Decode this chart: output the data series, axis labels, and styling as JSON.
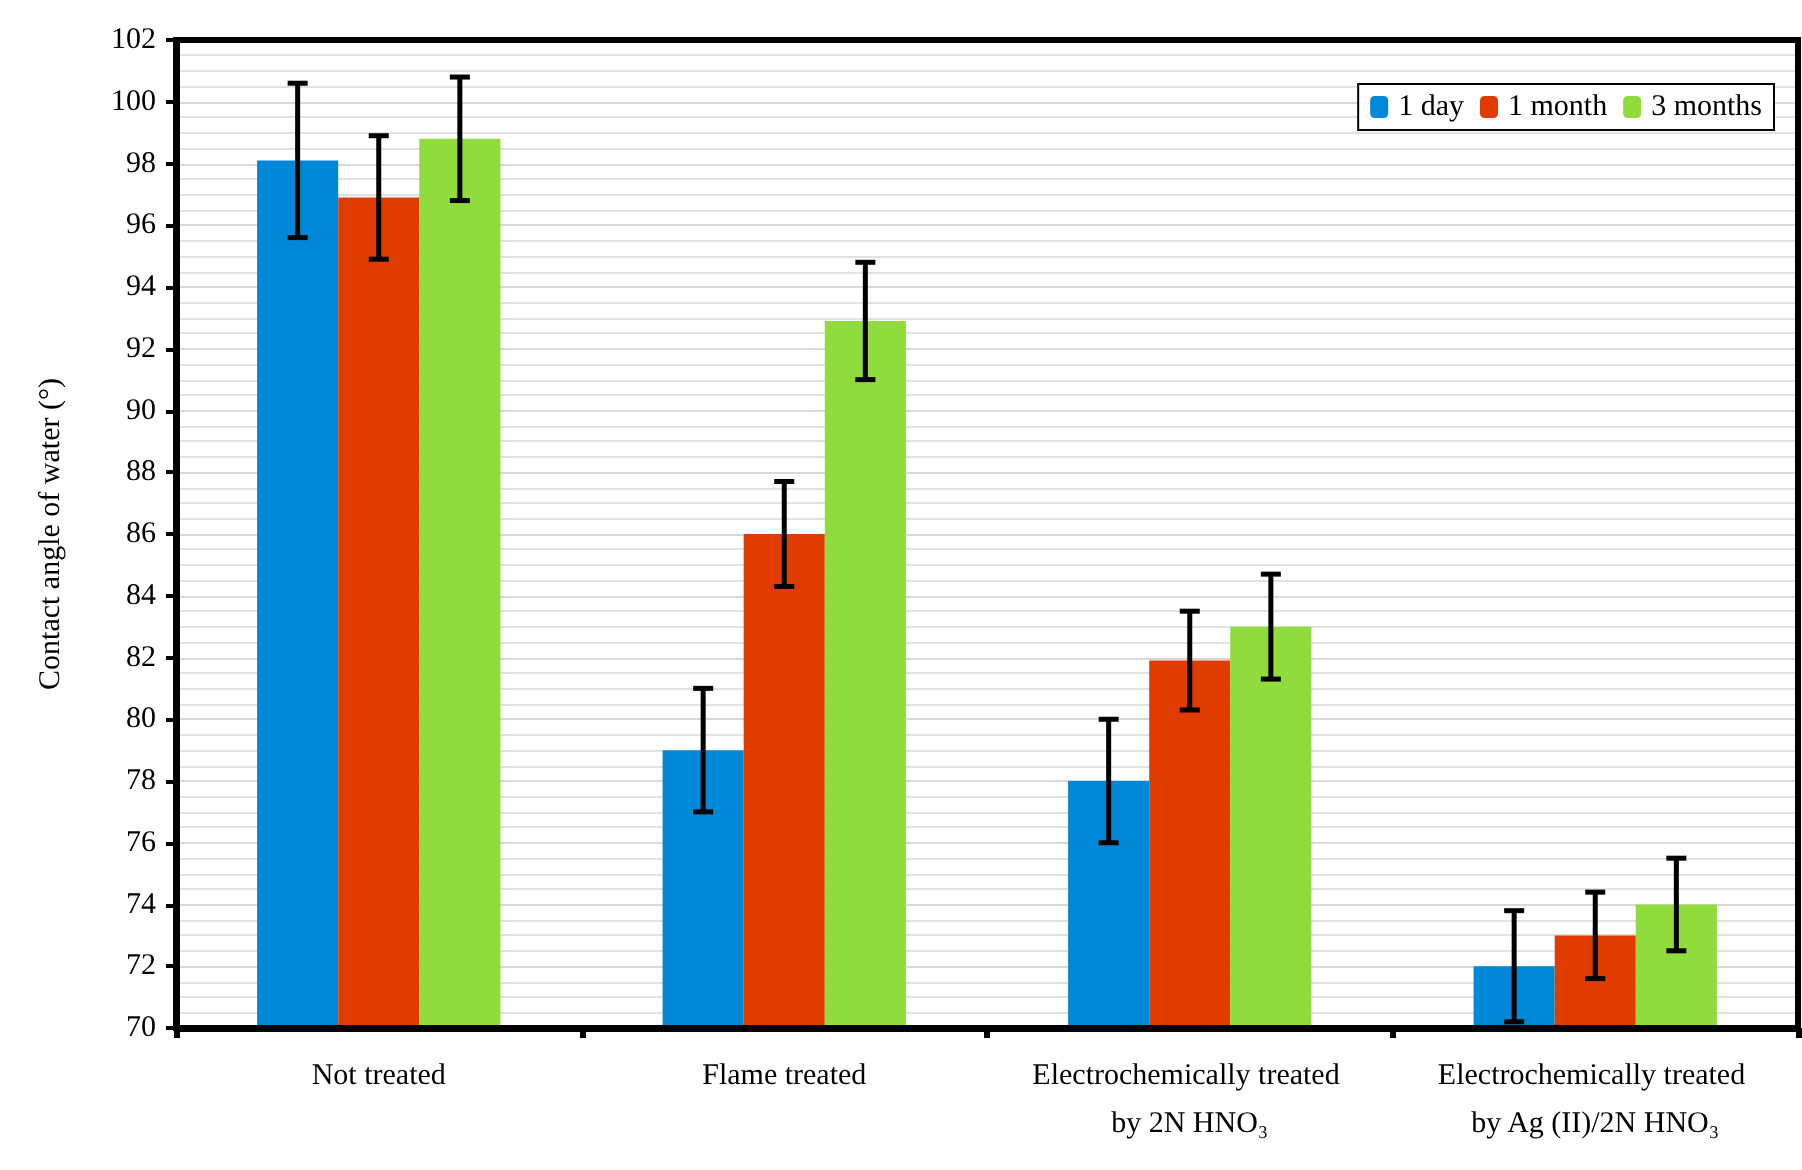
{
  "chart_data": {
    "type": "bar",
    "ylabel": "Contact angle of water (°)",
    "categories": [
      "Not treated",
      "Flame treated",
      "Electrochemically treated by 2N HNO₃",
      "Electrochemically treated by Ag (II)/2N HNO₃"
    ],
    "series": [
      {
        "name": "1 day",
        "color": "#0088d8",
        "values": [
          98.1,
          79,
          78,
          72
        ],
        "errors": [
          2.5,
          2,
          2,
          1.8
        ]
      },
      {
        "name": "1 month",
        "color": "#e03c00",
        "values": [
          96.9,
          86,
          81.9,
          73
        ],
        "errors": [
          2,
          1.7,
          1.6,
          1.4
        ]
      },
      {
        "name": "3 months",
        "color": "#8fdc3c",
        "values": [
          98.8,
          92.9,
          83,
          74
        ],
        "errors": [
          2,
          1.9,
          1.7,
          1.5
        ]
      }
    ],
    "ylim": [
      70,
      102
    ],
    "yticks": [
      70,
      72,
      74,
      76,
      78,
      80,
      82,
      84,
      86,
      88,
      90,
      92,
      94,
      96,
      98,
      100,
      102
    ],
    "grid": true,
    "legend": "top right"
  }
}
